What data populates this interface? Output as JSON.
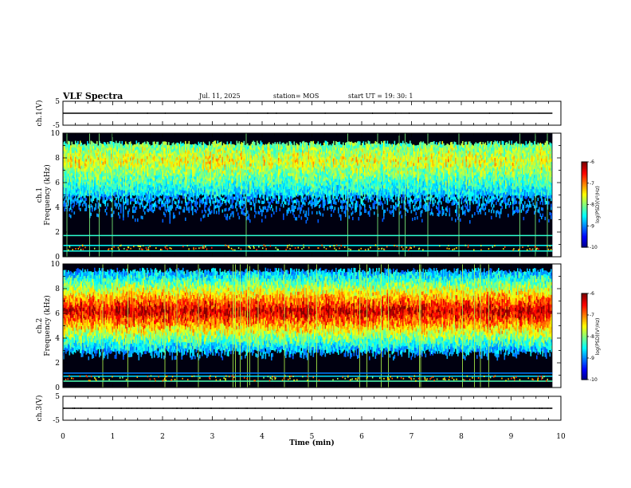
{
  "header": {
    "title": "VLF Spectra",
    "date": "Jul. 11, 2025",
    "station": "station= MOS",
    "start": "start UT = 19: 30: 1"
  },
  "chart_data": [
    {
      "type": "line",
      "name": "ch1-waveform",
      "ylabel": "ch.1(V)",
      "ylim": [
        -5,
        5
      ],
      "yticks": [
        5,
        -5
      ],
      "xlim": [
        0,
        10
      ],
      "baseline": 0
    },
    {
      "type": "heatmap",
      "name": "ch1-spectrogram",
      "ylabel": "ch.1\nFrequency (kHz)",
      "ylabel_line1": "ch.1",
      "ylabel_line2": "Frequency (kHz)",
      "ylim": [
        0,
        10
      ],
      "yticks": [
        0,
        2,
        4,
        6,
        8,
        10
      ],
      "xlim": [
        0,
        10
      ],
      "data_end_min": 9.83,
      "colorbar": {
        "label": "log(PSD)(V²/Hz)",
        "ticks": [
          -6,
          -7,
          -8,
          -9,
          -10
        ],
        "range": [
          -10,
          -6
        ]
      }
    },
    {
      "type": "heatmap",
      "name": "ch2-spectrogram",
      "ylabel_line1": "ch.2",
      "ylabel_line2": "Frequency (kHz)",
      "ylim": [
        0,
        10
      ],
      "yticks": [
        0,
        2,
        4,
        6,
        8,
        10
      ],
      "xlim": [
        0,
        10
      ],
      "data_end_min": 9.83,
      "colorbar": {
        "label": "log(PSD)(V²/Hz)",
        "ticks": [
          -6,
          -7,
          -8,
          -9,
          -10
        ],
        "range": [
          -10,
          -6
        ]
      }
    },
    {
      "type": "line",
      "name": "ch3-waveform",
      "ylabel": "ch.3(V)",
      "ylim": [
        -5,
        5
      ],
      "yticks": [
        5,
        -5
      ],
      "xlim": [
        0,
        10
      ],
      "xlabel": "Time (min)",
      "xticks": [
        0,
        1,
        2,
        3,
        4,
        5,
        6,
        7,
        8,
        9,
        10
      ],
      "baseline": 0
    }
  ],
  "colors": {
    "background": "#ffffff",
    "axes": "#000000",
    "spectro_bg": "#000010"
  }
}
